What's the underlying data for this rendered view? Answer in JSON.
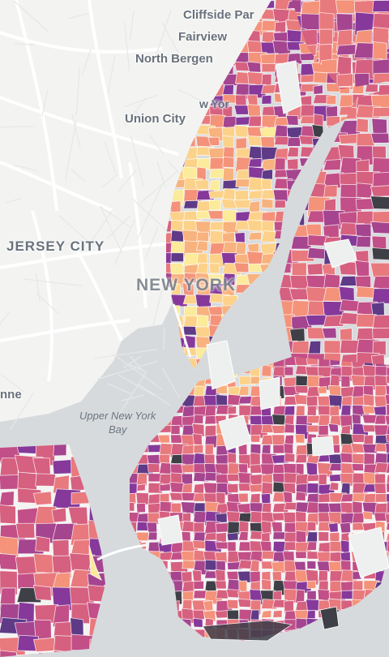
{
  "map": {
    "place_labels": {
      "cliffside_park": "Cliffside Par",
      "fairview": "Fairview",
      "north_bergen": "North Bergen",
      "new_york_fragment": "w Yor",
      "union_city": "Union City",
      "jersey_city": "JERSEY CITY",
      "new_york": "NEW YORK",
      "bayonne_fragment": "nne",
      "upper_bay_line1": "Upper New York",
      "upper_bay_line2": "Bay"
    },
    "choropleth_palette": [
      "#fbeb9a",
      "#fcd28a",
      "#f8b27e",
      "#f4937a",
      "#e8797d",
      "#d6607f",
      "#c24f87",
      "#a5448f",
      "#86399a",
      "#5e3a87",
      "#3f3f47"
    ],
    "colors": {
      "water": "#d7dadd",
      "land": "#f3f3f2",
      "roads": "#ffffff",
      "tract_border": "#ffffff"
    }
  }
}
